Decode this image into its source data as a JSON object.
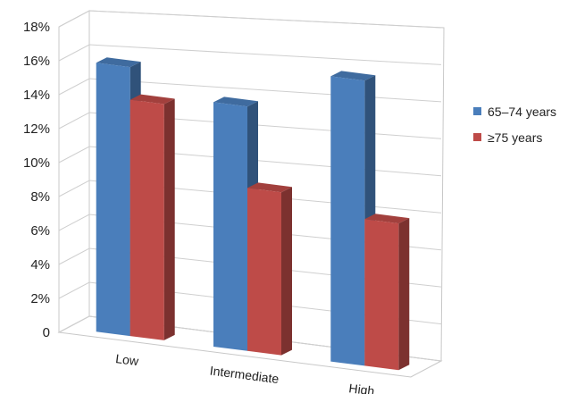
{
  "chart_data": {
    "type": "bar",
    "title": "",
    "xlabel": "",
    "ylabel": "",
    "categories": [
      "Low",
      "Intermediate",
      "High"
    ],
    "series": [
      {
        "name": "65–74 years",
        "values": [
          16.5,
          15.0,
          17.5
        ],
        "color": "#4a7ebb"
      },
      {
        "name": "≥75 years",
        "values": [
          14.5,
          10.0,
          9.0
        ],
        "color": "#be4b48"
      }
    ],
    "ylim": [
      0,
      18
    ],
    "y_ticks": [
      "0",
      "2%",
      "4%",
      "6%",
      "8%",
      "10%",
      "12%",
      "14%",
      "16%",
      "18%"
    ],
    "grid": true,
    "legend_position": "right",
    "three_d": true
  }
}
